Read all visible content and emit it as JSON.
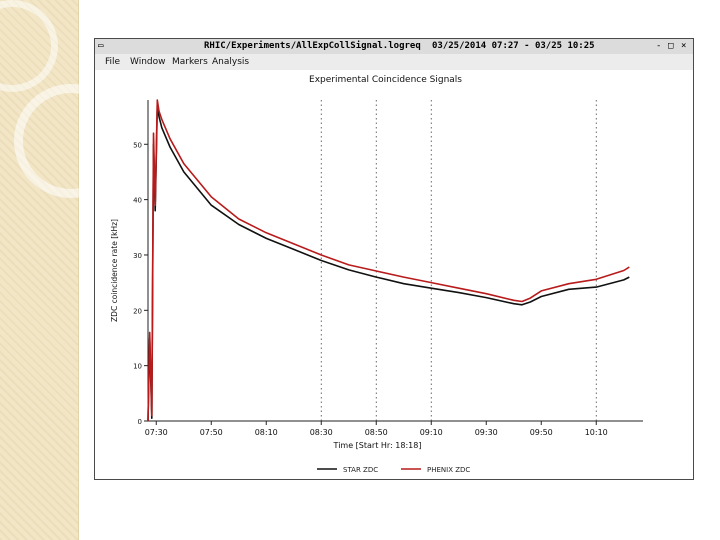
{
  "window": {
    "title": "RHIC/Experiments/AllExpCollSignal.logreq",
    "date_range": "03/25/2014 07:27 - 03/25 10:25",
    "controls": {
      "minimize": "-",
      "maximize": "□",
      "close": "×"
    }
  },
  "menu": {
    "items": [
      {
        "label": "File"
      },
      {
        "label": "Window"
      },
      {
        "label": "Markers"
      },
      {
        "label": "Analysis"
      }
    ]
  },
  "chart_data": {
    "type": "line",
    "title": "Experimental Coincidence Signals",
    "xlabel": "Time [Start Hr: 18:18]",
    "ylabel": "ZDC coincidence rate [kHz]",
    "x_tick_labels": [
      "07:30",
      "07:50",
      "08:10",
      "08:30",
      "08:50",
      "09:10",
      "09:30",
      "09:50",
      "10:10"
    ],
    "x_ticks_min": [
      30,
      50,
      70,
      90,
      110,
      130,
      150,
      170,
      190
    ],
    "xlim_min": [
      27,
      207
    ],
    "ylim": [
      0,
      58
    ],
    "y_ticks": [
      0,
      10,
      20,
      30,
      40,
      50
    ],
    "y_tick_labels": [
      "0",
      "10",
      "20",
      "30",
      "40",
      "50"
    ],
    "gridlines_vertical_min": [
      90,
      110,
      130,
      190
    ],
    "series": [
      {
        "name": "STAR ZDC",
        "color": "#111111",
        "x_min": [
          27,
          27.6,
          28.4,
          29.0,
          29.6,
          30.4,
          31.0,
          32,
          35,
          40,
          50,
          60,
          70,
          80,
          90,
          100,
          110,
          120,
          130,
          140,
          150,
          160,
          163,
          166,
          170,
          180,
          190,
          200,
          202
        ],
        "y": [
          0,
          15,
          0.5,
          50,
          38,
          57,
          55,
          53,
          49.5,
          45,
          39,
          35.5,
          33,
          31,
          29,
          27.3,
          26,
          24.8,
          24,
          23.2,
          22.3,
          21.2,
          21.0,
          21.5,
          22.5,
          23.8,
          24.2,
          25.5,
          26
        ]
      },
      {
        "name": "PHENIX ZDC",
        "color": "#b81b1b",
        "x_min": [
          27,
          27.6,
          28.4,
          29.0,
          29.6,
          30.4,
          31.0,
          32,
          35,
          40,
          50,
          60,
          70,
          80,
          90,
          100,
          110,
          120,
          130,
          140,
          150,
          160,
          163,
          166,
          170,
          180,
          190,
          200,
          202
        ],
        "y": [
          0,
          16,
          1,
          52,
          39,
          58,
          56,
          54.5,
          51,
          46.5,
          40.5,
          36.5,
          34,
          32,
          30,
          28.2,
          27.1,
          26,
          25,
          24,
          23,
          21.8,
          21.6,
          22.2,
          23.5,
          24.8,
          25.6,
          27.2,
          27.8
        ]
      }
    ],
    "legend": {
      "position": "bottom-center"
    }
  }
}
